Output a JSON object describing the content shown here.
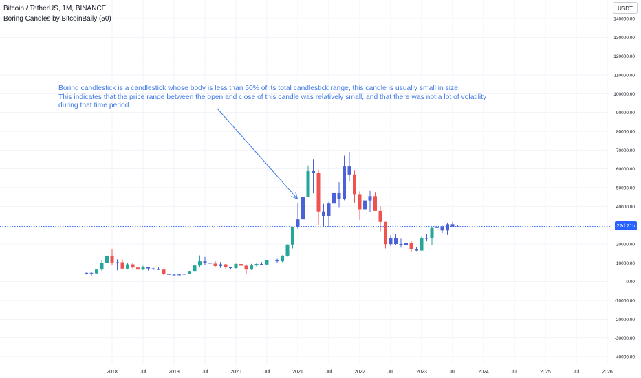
{
  "header": {
    "symbol_title": "Bitcoin / TetherUS, 1M, BINANCE",
    "indicator_title": "Boring Candles by BitcoinBaily (50)",
    "currency_button": "USDT"
  },
  "annotation": {
    "line1": "Boring candlestick is a candlestick whose body is less than 50% of its total candlestick range, this candle is usually small in size.",
    "line2": "This indicates that the price range between the open and close of this candle was relatively small, and that there was not a lot of volatility during that time period."
  },
  "price_badge": "22d 21h",
  "colors": {
    "up": "#26a69a",
    "down": "#ef5350",
    "boring": "#4a61d8",
    "annotation": "#3f79e3",
    "current_price_line": "#2962ff",
    "grid": "#f0f3fa",
    "axis_text": "#131722"
  },
  "chart_data": {
    "type": "candlestick",
    "title": "Bitcoin / TetherUS, 1M, BINANCE",
    "xlabel": "",
    "ylabel": "",
    "ylim": [
      -40000,
      140000
    ],
    "grid": true,
    "current_price": 29300,
    "y_ticks": [
      "140000.00",
      "130000.00",
      "120000.00",
      "110000.00",
      "100000.00",
      "90000.00",
      "80000.00",
      "70000.00",
      "60000.00",
      "50000.00",
      "40000.00",
      "30000.00",
      "20000.00",
      "10000.00",
      "0.00",
      "-10000.00",
      "-20000.00",
      "-30000.00",
      "-40000.00"
    ],
    "x_ticks": [
      "2018",
      "Jul",
      "2019",
      "Jul",
      "2020",
      "Jul",
      "2021",
      "Jul",
      "2022",
      "Jul",
      "2023",
      "Jul",
      "2024",
      "Jul",
      "2025",
      "Jul",
      "2026"
    ],
    "candles": [
      {
        "date": "2017-08",
        "o": 4300,
        "h": 4800,
        "l": 3800,
        "c": 4700,
        "boring": true
      },
      {
        "date": "2017-09",
        "o": 4700,
        "h": 5000,
        "l": 3000,
        "c": 4400,
        "boring": true
      },
      {
        "date": "2017-10",
        "o": 4400,
        "h": 6400,
        "l": 4200,
        "c": 6400,
        "boring": false
      },
      {
        "date": "2017-11",
        "o": 6400,
        "h": 11300,
        "l": 5500,
        "c": 9900,
        "boring": false
      },
      {
        "date": "2017-12",
        "o": 9900,
        "h": 19800,
        "l": 10000,
        "c": 13800,
        "boring": false
      },
      {
        "date": "2018-01",
        "o": 13800,
        "h": 17200,
        "l": 9000,
        "c": 10200,
        "boring": false
      },
      {
        "date": "2018-02",
        "o": 10200,
        "h": 11800,
        "l": 6000,
        "c": 10300,
        "boring": true
      },
      {
        "date": "2018-03",
        "o": 10300,
        "h": 11700,
        "l": 6600,
        "c": 6900,
        "boring": false
      },
      {
        "date": "2018-04",
        "o": 6900,
        "h": 9800,
        "l": 6400,
        "c": 9200,
        "boring": false
      },
      {
        "date": "2018-05",
        "o": 9200,
        "h": 10000,
        "l": 7000,
        "c": 7500,
        "boring": false
      },
      {
        "date": "2018-06",
        "o": 7500,
        "h": 7800,
        "l": 5800,
        "c": 6400,
        "boring": false
      },
      {
        "date": "2018-07",
        "o": 6400,
        "h": 8500,
        "l": 6100,
        "c": 7700,
        "boring": false
      },
      {
        "date": "2018-08",
        "o": 7700,
        "h": 7800,
        "l": 5900,
        "c": 7000,
        "boring": true
      },
      {
        "date": "2018-09",
        "o": 7000,
        "h": 7400,
        "l": 6100,
        "c": 6600,
        "boring": true
      },
      {
        "date": "2018-10",
        "o": 6600,
        "h": 7600,
        "l": 6100,
        "c": 6400,
        "boring": true
      },
      {
        "date": "2018-11",
        "o": 6400,
        "h": 6500,
        "l": 3600,
        "c": 4000,
        "boring": false
      },
      {
        "date": "2018-12",
        "o": 4000,
        "h": 4300,
        "l": 3100,
        "c": 3700,
        "boring": true
      },
      {
        "date": "2019-01",
        "o": 3700,
        "h": 4100,
        "l": 3300,
        "c": 3400,
        "boring": true
      },
      {
        "date": "2019-02",
        "o": 3400,
        "h": 4200,
        "l": 3300,
        "c": 3800,
        "boring": true
      },
      {
        "date": "2019-03",
        "o": 3800,
        "h": 4100,
        "l": 3700,
        "c": 4100,
        "boring": true
      },
      {
        "date": "2019-04",
        "o": 4100,
        "h": 5600,
        "l": 4100,
        "c": 5300,
        "boring": false
      },
      {
        "date": "2019-05",
        "o": 5300,
        "h": 9100,
        "l": 5300,
        "c": 8600,
        "boring": false
      },
      {
        "date": "2019-06",
        "o": 8600,
        "h": 13900,
        "l": 7500,
        "c": 10800,
        "boring": false
      },
      {
        "date": "2019-07",
        "o": 10800,
        "h": 13200,
        "l": 9000,
        "c": 10100,
        "boring": true
      },
      {
        "date": "2019-08",
        "o": 10100,
        "h": 12300,
        "l": 9400,
        "c": 9600,
        "boring": true
      },
      {
        "date": "2019-09",
        "o": 9600,
        "h": 10900,
        "l": 7700,
        "c": 8300,
        "boring": false
      },
      {
        "date": "2019-10",
        "o": 8300,
        "h": 10400,
        "l": 7300,
        "c": 9200,
        "boring": true
      },
      {
        "date": "2019-11",
        "o": 9200,
        "h": 9500,
        "l": 6500,
        "c": 7600,
        "boring": false
      },
      {
        "date": "2019-12",
        "o": 7600,
        "h": 7800,
        "l": 6400,
        "c": 7200,
        "boring": true
      },
      {
        "date": "2020-01",
        "o": 7200,
        "h": 9600,
        "l": 6900,
        "c": 9400,
        "boring": false
      },
      {
        "date": "2020-02",
        "o": 9400,
        "h": 10500,
        "l": 8400,
        "c": 8500,
        "boring": false
      },
      {
        "date": "2020-03",
        "o": 8500,
        "h": 9200,
        "l": 3800,
        "c": 6400,
        "boring": false
      },
      {
        "date": "2020-04",
        "o": 6400,
        "h": 9500,
        "l": 6200,
        "c": 8600,
        "boring": false
      },
      {
        "date": "2020-05",
        "o": 8600,
        "h": 10100,
        "l": 8100,
        "c": 9400,
        "boring": false
      },
      {
        "date": "2020-06",
        "o": 9400,
        "h": 10400,
        "l": 8900,
        "c": 9100,
        "boring": true
      },
      {
        "date": "2020-07",
        "o": 9100,
        "h": 11400,
        "l": 8900,
        "c": 11300,
        "boring": false
      },
      {
        "date": "2020-08",
        "o": 11300,
        "h": 12500,
        "l": 10600,
        "c": 11600,
        "boring": true
      },
      {
        "date": "2020-09",
        "o": 11600,
        "h": 12100,
        "l": 9900,
        "c": 10800,
        "boring": true
      },
      {
        "date": "2020-10",
        "o": 10800,
        "h": 14000,
        "l": 10400,
        "c": 13800,
        "boring": false
      },
      {
        "date": "2020-11",
        "o": 13800,
        "h": 19900,
        "l": 13200,
        "c": 19700,
        "boring": false
      },
      {
        "date": "2020-12",
        "o": 19700,
        "h": 29300,
        "l": 17600,
        "c": 29000,
        "boring": false
      },
      {
        "date": "2021-01",
        "o": 29000,
        "h": 41900,
        "l": 28100,
        "c": 33100,
        "boring": true
      },
      {
        "date": "2021-02",
        "o": 33100,
        "h": 58400,
        "l": 32300,
        "c": 45100,
        "boring": true
      },
      {
        "date": "2021-03",
        "o": 45100,
        "h": 61800,
        "l": 45000,
        "c": 58800,
        "boring": false
      },
      {
        "date": "2021-04",
        "o": 58800,
        "h": 64900,
        "l": 47000,
        "c": 57700,
        "boring": true
      },
      {
        "date": "2021-05",
        "o": 57700,
        "h": 59600,
        "l": 30000,
        "c": 37300,
        "boring": false
      },
      {
        "date": "2021-06",
        "o": 37300,
        "h": 41300,
        "l": 28800,
        "c": 35000,
        "boring": true
      },
      {
        "date": "2021-07",
        "o": 35000,
        "h": 42400,
        "l": 29300,
        "c": 41500,
        "boring": true
      },
      {
        "date": "2021-08",
        "o": 41500,
        "h": 50500,
        "l": 37300,
        "c": 47100,
        "boring": true
      },
      {
        "date": "2021-09",
        "o": 47100,
        "h": 52900,
        "l": 39600,
        "c": 43800,
        "boring": true
      },
      {
        "date": "2021-10",
        "o": 43800,
        "h": 67000,
        "l": 43300,
        "c": 61300,
        "boring": true
      },
      {
        "date": "2021-11",
        "o": 61300,
        "h": 69000,
        "l": 53300,
        "c": 57000,
        "boring": true
      },
      {
        "date": "2021-12",
        "o": 57000,
        "h": 59000,
        "l": 42000,
        "c": 46200,
        "boring": false
      },
      {
        "date": "2022-01",
        "o": 46200,
        "h": 48000,
        "l": 32900,
        "c": 38500,
        "boring": false
      },
      {
        "date": "2022-02",
        "o": 38500,
        "h": 45800,
        "l": 34300,
        "c": 43200,
        "boring": true
      },
      {
        "date": "2022-03",
        "o": 43200,
        "h": 48200,
        "l": 37200,
        "c": 45500,
        "boring": true
      },
      {
        "date": "2022-04",
        "o": 45500,
        "h": 47400,
        "l": 37700,
        "c": 37600,
        "boring": false
      },
      {
        "date": "2022-05",
        "o": 37600,
        "h": 40000,
        "l": 26700,
        "c": 31800,
        "boring": false
      },
      {
        "date": "2022-06",
        "o": 31800,
        "h": 31900,
        "l": 17600,
        "c": 19900,
        "boring": false
      },
      {
        "date": "2022-07",
        "o": 19900,
        "h": 24700,
        "l": 18800,
        "c": 23300,
        "boring": true
      },
      {
        "date": "2022-08",
        "o": 23300,
        "h": 25200,
        "l": 19500,
        "c": 20000,
        "boring": true
      },
      {
        "date": "2022-09",
        "o": 20000,
        "h": 22800,
        "l": 18100,
        "c": 19400,
        "boring": true
      },
      {
        "date": "2022-10",
        "o": 19400,
        "h": 21000,
        "l": 18200,
        "c": 20500,
        "boring": true
      },
      {
        "date": "2022-11",
        "o": 20500,
        "h": 21500,
        "l": 15500,
        "c": 17200,
        "boring": false
      },
      {
        "date": "2022-12",
        "o": 17200,
        "h": 18400,
        "l": 16300,
        "c": 16500,
        "boring": true
      },
      {
        "date": "2023-01",
        "o": 16500,
        "h": 23900,
        "l": 16500,
        "c": 23100,
        "boring": false
      },
      {
        "date": "2023-02",
        "o": 23100,
        "h": 25300,
        "l": 21400,
        "c": 23100,
        "boring": true
      },
      {
        "date": "2023-03",
        "o": 23100,
        "h": 29200,
        "l": 19500,
        "c": 28500,
        "boring": false
      },
      {
        "date": "2023-04",
        "o": 28500,
        "h": 31000,
        "l": 26900,
        "c": 29200,
        "boring": true
      },
      {
        "date": "2023-05",
        "o": 29200,
        "h": 29800,
        "l": 25800,
        "c": 27200,
        "boring": true
      },
      {
        "date": "2023-06",
        "o": 27200,
        "h": 31400,
        "l": 24800,
        "c": 30500,
        "boring": true
      },
      {
        "date": "2023-07",
        "o": 30500,
        "h": 31800,
        "l": 29000,
        "c": 29200,
        "boring": true
      },
      {
        "date": "2023-08",
        "o": 29200,
        "h": 29900,
        "l": 28900,
        "c": 29300,
        "boring": true
      }
    ]
  }
}
